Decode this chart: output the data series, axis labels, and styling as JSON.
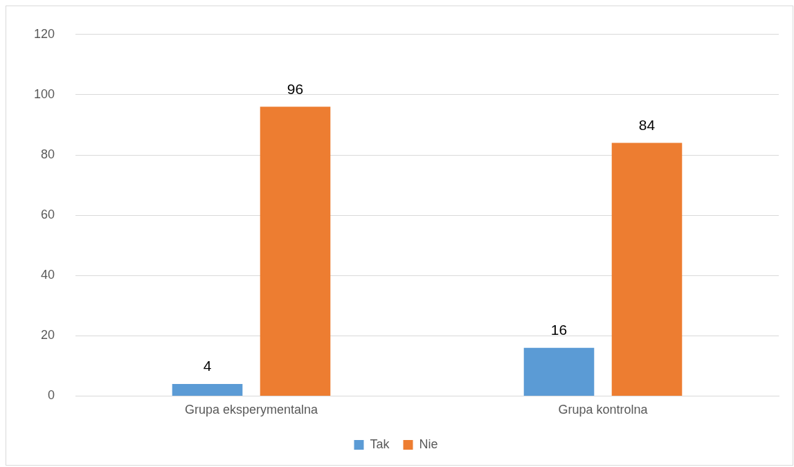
{
  "chart_data": {
    "type": "bar",
    "categories": [
      "Grupa eksperymentalna",
      "Grupa kontrolna"
    ],
    "series": [
      {
        "name": "Tak",
        "color": "#5b9bd5",
        "values": [
          4,
          16
        ]
      },
      {
        "name": "Nie",
        "color": "#ed7d31",
        "values": [
          96,
          84
        ]
      }
    ],
    "ylim": [
      0,
      120
    ],
    "yticks": [
      0,
      20,
      40,
      60,
      80,
      100,
      120
    ],
    "grid": "y",
    "legend": "bottom",
    "data_labels": true
  }
}
